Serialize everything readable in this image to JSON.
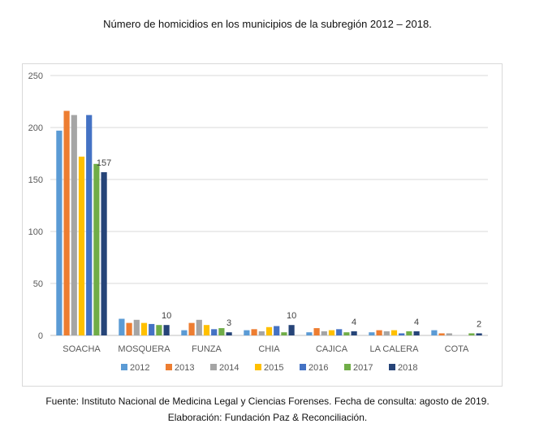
{
  "title": "Número de homicidios en los municipios de la subregión 2012 – 2018.",
  "footer": {
    "line1": "Fuente: Instituto Nacional de Medicina Legal y Ciencias Forenses. Fecha de consulta: agosto de 2019.",
    "line2": "Elaboración: Fundación Paz & Reconciliación."
  },
  "chart_data": {
    "type": "bar",
    "categories": [
      "SOACHA",
      "MOSQUERA",
      "FUNZA",
      "CHIA",
      "CAJICA",
      "LA CALERA",
      "COTA"
    ],
    "ylim": [
      0,
      250
    ],
    "yticks": [
      0,
      50,
      100,
      150,
      200,
      250
    ],
    "grid": true,
    "legend_position": "bottom",
    "series": [
      {
        "name": "2012",
        "color": "#5b9bd5",
        "values": [
          197,
          16,
          5,
          5,
          3,
          3,
          5
        ]
      },
      {
        "name": "2013",
        "color": "#ed7d31",
        "values": [
          216,
          12,
          12,
          6,
          7,
          5,
          2
        ]
      },
      {
        "name": "2014",
        "color": "#a5a5a5",
        "values": [
          212,
          15,
          15,
          4,
          4,
          4,
          2
        ]
      },
      {
        "name": "2015",
        "color": "#ffc000",
        "values": [
          172,
          12,
          10,
          8,
          5,
          5,
          0
        ]
      },
      {
        "name": "2016",
        "color": "#4472c4",
        "values": [
          212,
          11,
          6,
          9,
          6,
          2,
          0
        ]
      },
      {
        "name": "2017",
        "color": "#70ad47",
        "values": [
          165,
          10,
          7,
          3,
          3,
          4,
          2
        ]
      },
      {
        "name": "2018",
        "color": "#264478",
        "values": [
          157,
          10,
          3,
          10,
          4,
          4,
          2
        ]
      }
    ],
    "data_labels": [
      {
        "category": "SOACHA",
        "series": "2018",
        "text": "157"
      },
      {
        "category": "MOSQUERA",
        "series": "2018",
        "text": "10"
      },
      {
        "category": "FUNZA",
        "series": "2018",
        "text": "3"
      },
      {
        "category": "CHIA",
        "series": "2018",
        "text": "10"
      },
      {
        "category": "CAJICA",
        "series": "2018",
        "text": "4"
      },
      {
        "category": "LA CALERA",
        "series": "2018",
        "text": "4"
      },
      {
        "category": "COTA",
        "series": "2018",
        "text": "2"
      }
    ]
  }
}
